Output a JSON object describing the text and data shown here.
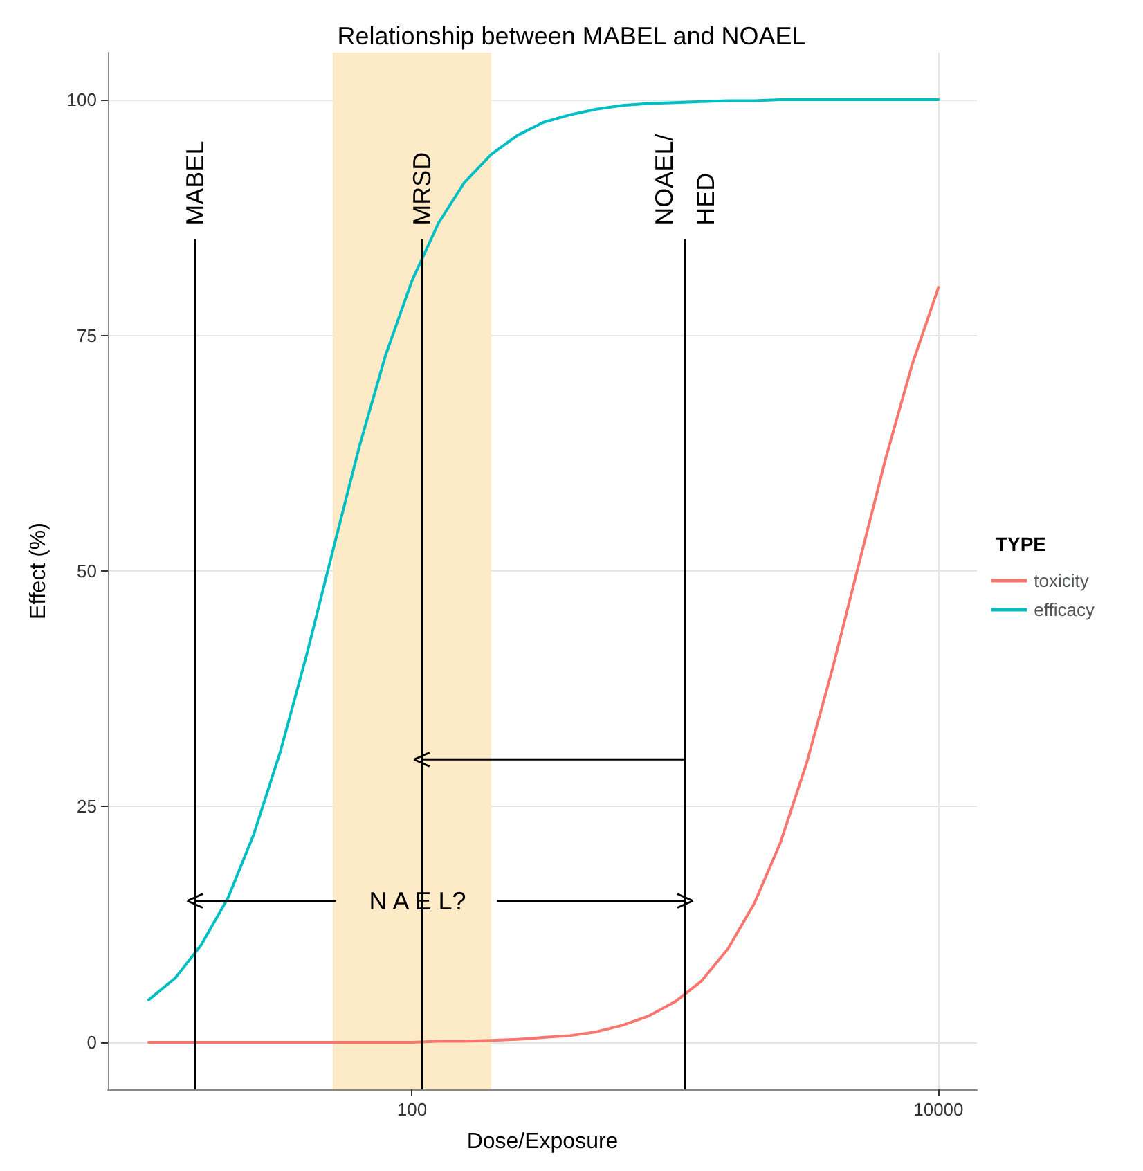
{
  "chart_data": {
    "type": "line",
    "title": "Relationship between MABEL and NOAEL",
    "xlabel": "Dose/Exposure",
    "ylabel": "Effect (%)",
    "legend_title": "TYPE",
    "log": "x",
    "xlim": [
      7,
      14000
    ],
    "xticks": [
      100,
      10000
    ],
    "ylim": [
      -5,
      105
    ],
    "yticks": [
      0,
      25,
      50,
      75,
      100
    ],
    "grid": true,
    "legend": "right",
    "marker": "none",
    "line_style": "solid",
    "x": [
      10,
      12.6,
      15.8,
      20,
      25.1,
      31.6,
      39.8,
      50.1,
      63.1,
      79.4,
      100,
      126,
      158,
      200,
      251,
      316,
      398,
      501,
      631,
      794,
      1000,
      1259,
      1585,
      1995,
      2512,
      3162,
      3981,
      5012,
      6310,
      7943,
      10000
    ],
    "series": [
      {
        "name": "toxicity",
        "color": "#f8766d",
        "values": [
          0,
          0,
          0,
          0,
          0,
          0,
          0,
          0,
          0,
          0,
          0,
          0.1,
          0.1,
          0.2,
          0.3,
          0.5,
          0.7,
          1.1,
          1.8,
          2.8,
          4.3,
          6.5,
          9.9,
          14.7,
          21.2,
          29.7,
          39.9,
          51.0,
          62.0,
          71.9,
          80.1
        ]
      },
      {
        "name": "efficacy",
        "color": "#00bfc4",
        "values": [
          4.5,
          6.8,
          10.3,
          15.3,
          22.1,
          30.8,
          41.1,
          52.2,
          63.2,
          72.9,
          80.8,
          86.9,
          91.2,
          94.2,
          96.2,
          97.6,
          98.4,
          99.0,
          99.4,
          99.6,
          99.7,
          99.8,
          99.9,
          99.9,
          100,
          100,
          100,
          100,
          100,
          100,
          100
        ]
      },
      {
        "type": "line",
        "color": "#000000",
        "marker": "cross",
        "x": [
          51,
          15
        ],
        "values": [
          15,
          15
        ]
      },
      {
        "type": "line",
        "color": "#000000",
        "marker": "cross",
        "x": [
          212,
          1090
        ],
        "values": [
          15,
          15
        ]
      },
      {
        "type": "line",
        "color": "#000000",
        "marker": "cross",
        "x": [
          1090,
          109
        ],
        "values": [
          30,
          30
        ]
      }
    ],
    "ref_lines": [
      {
        "axis": "x",
        "value": 15,
        "label": "MABEL",
        "color": "#000000"
      },
      {
        "axis": "x",
        "value": 109,
        "label": "MRSD",
        "color": "#000000"
      },
      {
        "axis": "x",
        "value": 1090,
        "label": "NOAEL/\nHED",
        "color": "#000000"
      }
    ],
    "bands": [
      {
        "axis": "x",
        "from": 50,
        "to": 200,
        "color": "#fdebc8"
      }
    ],
    "annotations": [
      {
        "text": "N A E L?",
        "x": 105,
        "y": 15
      }
    ]
  }
}
